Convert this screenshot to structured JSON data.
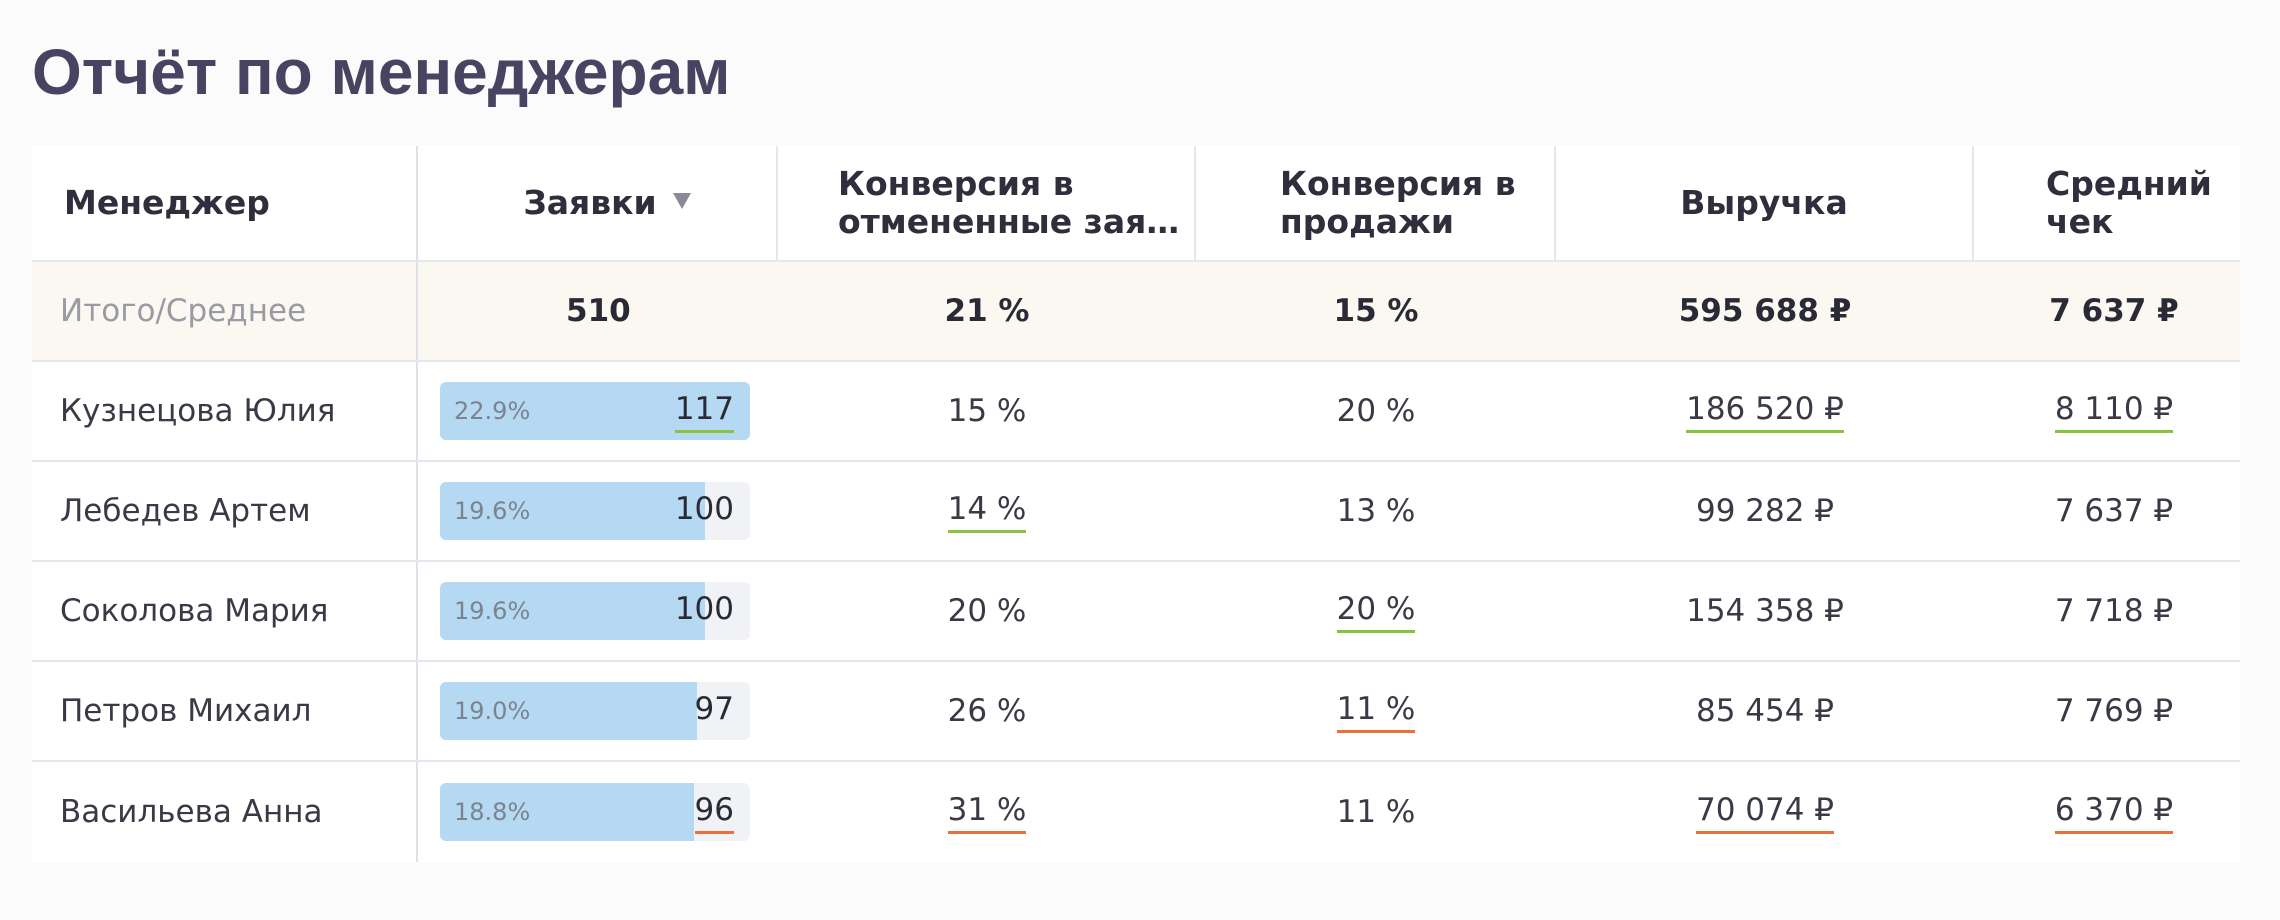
{
  "page": {
    "title": "Отчёт по менеджерам"
  },
  "table": {
    "headers": {
      "manager": "Менеджер",
      "requests": "Заявки",
      "cancel_conv_line1": "Конверсия в",
      "cancel_conv_line2": "отмененные зая…",
      "sales_conv_line1": "Конверсия в",
      "sales_conv_line2": "продажи",
      "revenue": "Выручка",
      "avg_check_line1": "Средний",
      "avg_check_line2": "чек"
    },
    "sort_icon": "sort-desc-icon",
    "summary": {
      "label": "Итого/Среднее",
      "requests": "510",
      "cancel_conv": "21 %",
      "sales_conv": "15 %",
      "revenue": "595 688 ₽",
      "avg_check": "7 637 ₽"
    },
    "rows": [
      {
        "name": "Кузнецова Юлия",
        "share": "22.9%",
        "share_value": 0.229,
        "requests": "117",
        "requests_mark": "green",
        "cancel_conv": "15 %",
        "cancel_mark": "none",
        "sales_conv": "20 %",
        "sales_mark": "none",
        "revenue": "186 520 ₽",
        "revenue_mark": "green",
        "avg_check": "8 110 ₽",
        "avg_mark": "green"
      },
      {
        "name": "Лебедев Артем",
        "share": "19.6%",
        "share_value": 0.196,
        "requests": "100",
        "requests_mark": "none",
        "cancel_conv": "14 %",
        "cancel_mark": "green",
        "sales_conv": "13 %",
        "sales_mark": "none",
        "revenue": "99 282 ₽",
        "revenue_mark": "none",
        "avg_check": "7 637 ₽",
        "avg_mark": "none"
      },
      {
        "name": "Соколова Мария",
        "share": "19.6%",
        "share_value": 0.196,
        "requests": "100",
        "requests_mark": "none",
        "cancel_conv": "20 %",
        "cancel_mark": "none",
        "sales_conv": "20 %",
        "sales_mark": "green",
        "revenue": "154 358 ₽",
        "revenue_mark": "none",
        "avg_check": "7 718 ₽",
        "avg_mark": "none"
      },
      {
        "name": "Петров Михаил",
        "share": "19.0%",
        "share_value": 0.19,
        "requests": "97",
        "requests_mark": "none",
        "cancel_conv": "26 %",
        "cancel_mark": "none",
        "sales_conv": "11 %",
        "sales_mark": "red",
        "revenue": "85 454 ₽",
        "revenue_mark": "none",
        "avg_check": "7 769 ₽",
        "avg_mark": "none"
      },
      {
        "name": "Васильева Анна",
        "share": "18.8%",
        "share_value": 0.188,
        "requests": "96",
        "requests_mark": "red",
        "cancel_conv": "31 %",
        "cancel_mark": "red",
        "sales_conv": "11 %",
        "sales_mark": "none",
        "revenue": "70 074 ₽",
        "revenue_mark": "red",
        "avg_check": "6 370 ₽",
        "avg_mark": "red"
      }
    ],
    "colors": {
      "bar_fill": "#b5d9f2",
      "good": "#8ac43f",
      "bad": "#e8703a",
      "summary_bg": "#fbf8f1",
      "title": "#474462"
    }
  }
}
